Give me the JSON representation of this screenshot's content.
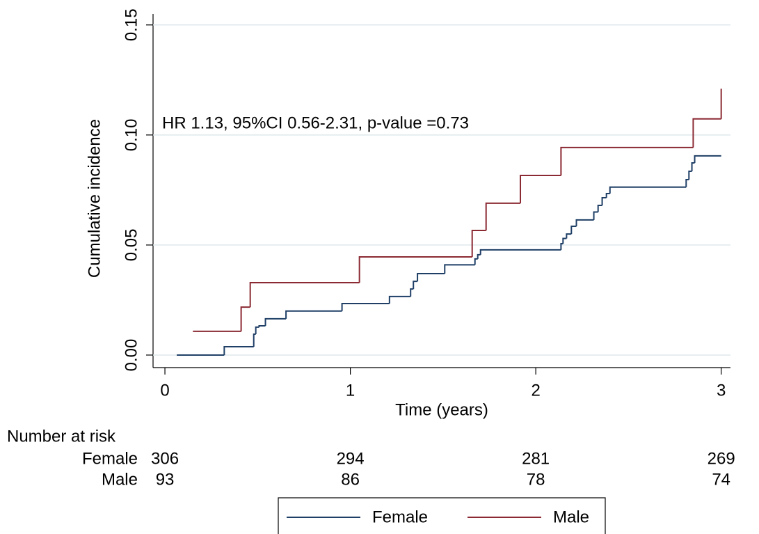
{
  "chart_data": {
    "type": "step",
    "annotation": "HR 1.13, 95%CI 0.56-2.31, p-value =0.73",
    "x_label": "Time (years)",
    "y_label": "Cumulative incidence",
    "xlim": [
      -0.064,
      3.05
    ],
    "ylim": [
      -0.0057,
      0.155
    ],
    "xticks": [
      0,
      1,
      2,
      3
    ],
    "yticks": [
      {
        "value": 0,
        "label": "0.00"
      },
      {
        "value": 0.05,
        "label": "0.05"
      },
      {
        "value": 0.1,
        "label": "0.10"
      },
      {
        "value": 0.15,
        "label": "0.15"
      }
    ],
    "grid": true,
    "series": [
      {
        "name": "Female",
        "color": "#1f3f66",
        "x": [
          0.064,
          0.32,
          0.479,
          0.49,
          0.508,
          0.542,
          0.653,
          0.955,
          1.211,
          1.325,
          1.34,
          1.362,
          1.509,
          1.672,
          1.687,
          1.702,
          2.136,
          2.147,
          2.166,
          2.192,
          2.219,
          2.313,
          2.336,
          2.358,
          2.381,
          2.4,
          2.811,
          2.826,
          2.842,
          2.857,
          3.0
        ],
        "values": [
          0,
          0.0038,
          0.0095,
          0.0127,
          0.0133,
          0.0165,
          0.02,
          0.0234,
          0.0266,
          0.03,
          0.0335,
          0.037,
          0.041,
          0.0437,
          0.0456,
          0.0478,
          0.0506,
          0.053,
          0.055,
          0.0585,
          0.0614,
          0.065,
          0.068,
          0.0715,
          0.0734,
          0.0763,
          0.0797,
          0.0835,
          0.0873,
          0.0905,
          0.0905
        ]
      },
      {
        "name": "Male",
        "color": "#8b2a33",
        "x": [
          0.151,
          0.411,
          0.46,
          1.049,
          1.657,
          1.732,
          1.917,
          2.136,
          2.849,
          3.0
        ],
        "values": [
          0.0108,
          0.0218,
          0.0329,
          0.0446,
          0.0566,
          0.069,
          0.0816,
          0.0943,
          0.1073,
          0.121
        ]
      }
    ]
  },
  "risk_table": {
    "title": "Number at risk",
    "rows": [
      {
        "name": "Female",
        "values": [
          306,
          294,
          281,
          269
        ]
      },
      {
        "name": "Male",
        "values": [
          93,
          86,
          78,
          74
        ]
      }
    ]
  }
}
